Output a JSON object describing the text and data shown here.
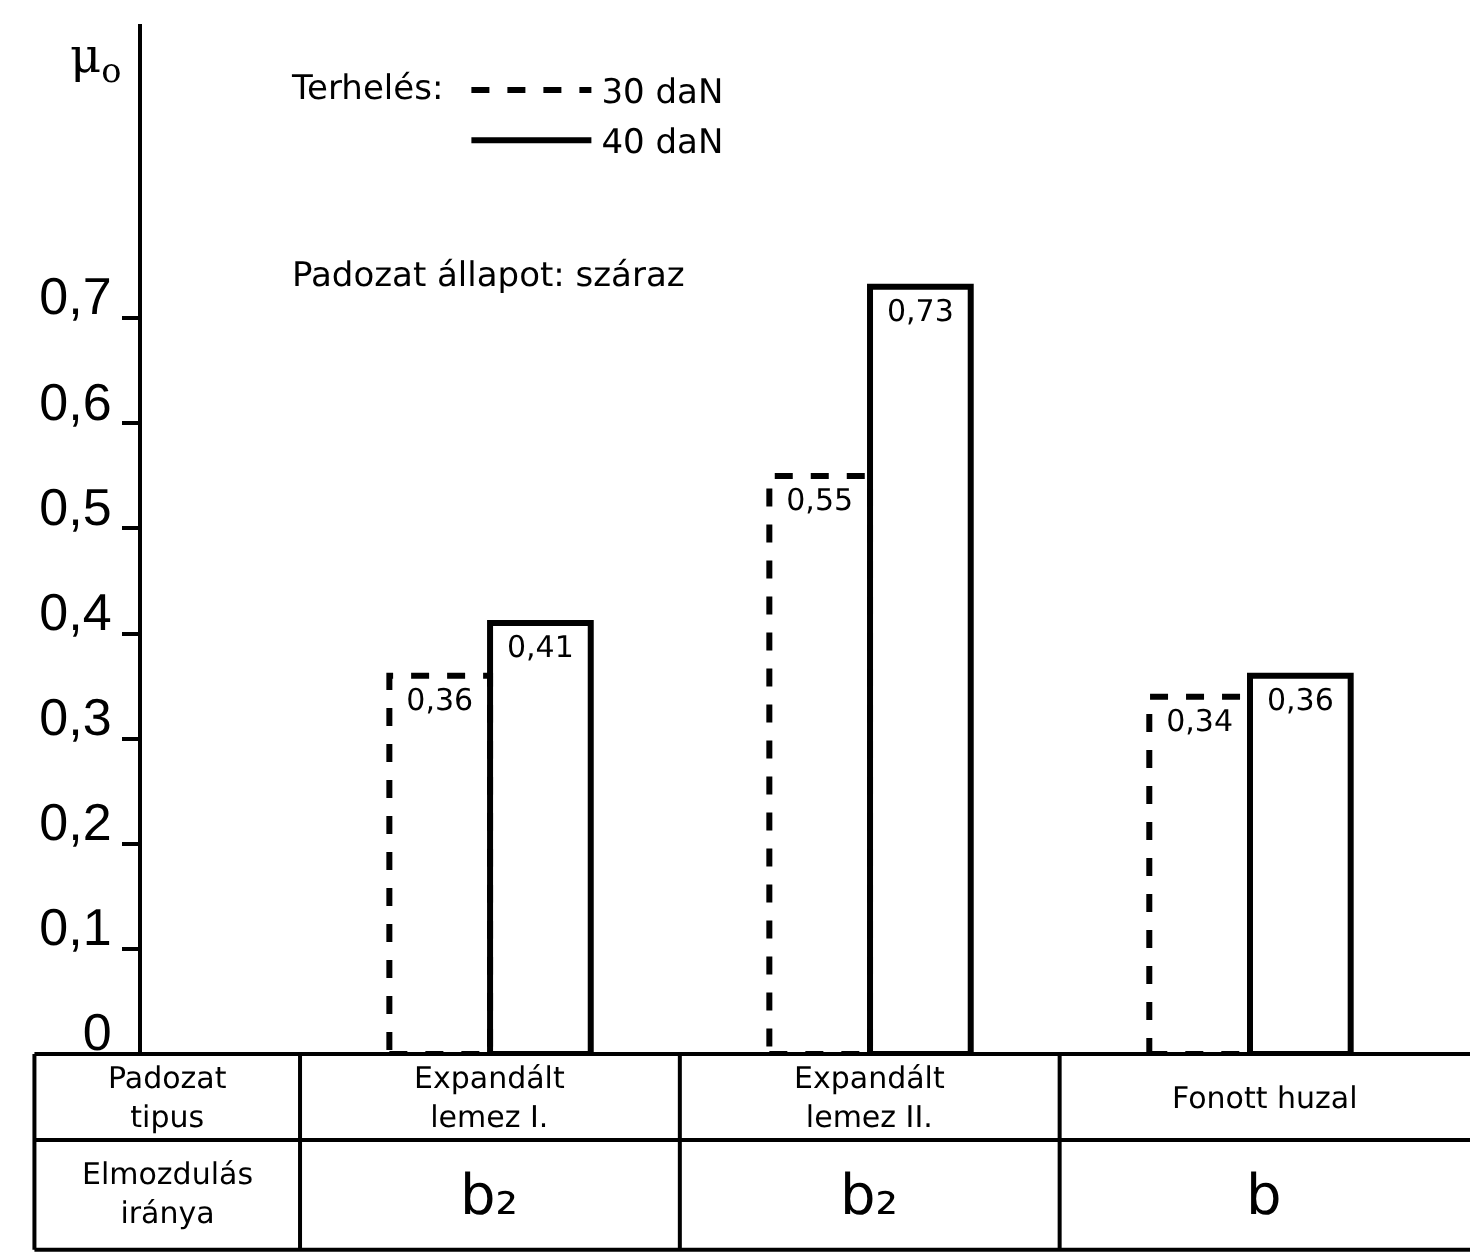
{
  "chart_data": {
    "type": "bar",
    "ylabel": "μ$_{o}$",
    "xlabel": "Padozat tipus",
    "legend_title": "Terhelés:",
    "categories": [
      "Expandált lemez I.",
      "Expandált lemez II.",
      "Fonott huzal"
    ],
    "series": [
      {
        "name": "30 daN",
        "color": "#000000",
        "line_style": "dashed",
        "values": [
          0.36,
          0.55,
          0.34
        ],
        "value_labels": [
          "0,36",
          "0,55",
          "0,34"
        ]
      },
      {
        "name": "40 daN",
        "color": "#000000",
        "line_style": "solid",
        "values": [
          0.41,
          0.73,
          0.36
        ],
        "value_labels": [
          "0,41",
          "0,73",
          "0,36"
        ]
      }
    ],
    "ylim": [
      0,
      0.98
    ],
    "yticks": [
      {
        "value": 0,
        "label": "0"
      },
      {
        "value": 0.1,
        "label": "0,1"
      },
      {
        "value": 0.2,
        "label": "0,2"
      },
      {
        "value": 0.3,
        "label": "0,3"
      },
      {
        "value": 0.4,
        "label": "0,4"
      },
      {
        "value": 0.5,
        "label": "0,5"
      },
      {
        "value": 0.6,
        "label": "0,6"
      },
      {
        "value": 0.7,
        "label": "0,7"
      }
    ],
    "annotations": [
      "Padozat állapot: száraz",
      "Elmozdulás iránya",
      "b₂",
      "b₂",
      "b"
    ],
    "legend": "top left"
  }
}
